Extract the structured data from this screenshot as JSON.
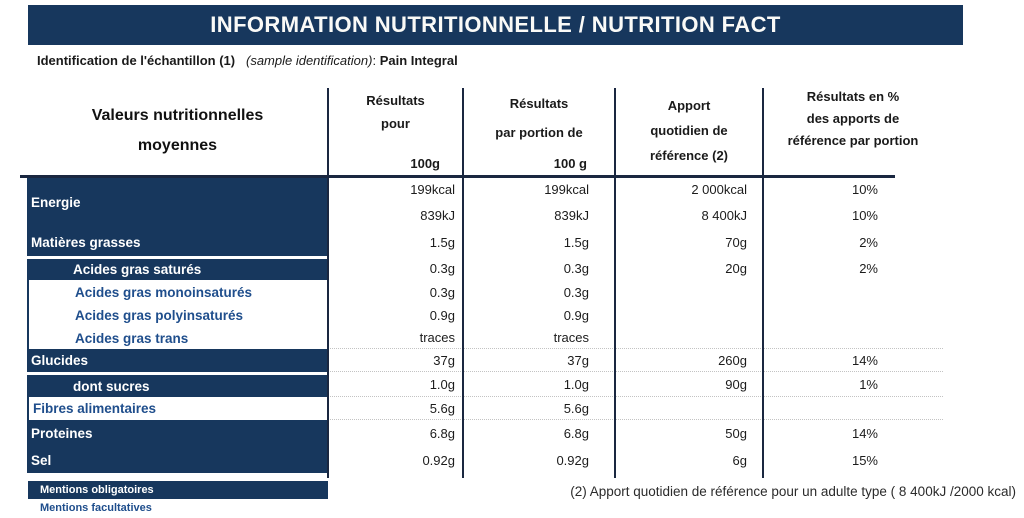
{
  "title": "INFORMATION NUTRITIONNELLE / NUTRITION FACT",
  "identification": {
    "label_fr": "Identification de l'échantillon (1)",
    "label_en": "(sample identification)",
    "separator": ":",
    "value": "Pain Integral"
  },
  "table": {
    "row_header": {
      "lines": [
        "Valeurs nutritionnelles",
        "moyennes"
      ]
    },
    "columns": [
      {
        "lines": [
          "Résultats",
          "pour"
        ],
        "unit": "100g"
      },
      {
        "lines": [
          "Résultats",
          "par portion de"
        ],
        "unit": "100 g"
      },
      {
        "lines": [
          "Apport",
          "quotidien de",
          "référence (2)"
        ],
        "unit": ""
      },
      {
        "lines": [
          "Résultats en %",
          "des apports de",
          "référence par portion"
        ],
        "unit": ""
      }
    ],
    "rows": [
      {
        "label": "Energie",
        "mandatory": true,
        "indent": false,
        "values": [
          [
            "199kcal",
            "839kJ"
          ],
          [
            "199kcal",
            "839kJ"
          ],
          [
            "2 000kcal",
            "8 400kJ"
          ],
          [
            "10%",
            "10%"
          ]
        ]
      },
      {
        "label": "Matières grasses",
        "mandatory": true,
        "indent": false,
        "values": [
          "1.5g",
          "1.5g",
          "70g",
          "2%"
        ]
      },
      {
        "label": "Acides gras saturés",
        "mandatory": true,
        "indent": true,
        "values": [
          "0.3g",
          "0.3g",
          "20g",
          "2%"
        ]
      },
      {
        "label": "Acides gras monoinsaturés",
        "mandatory": false,
        "indent": true,
        "values": [
          "0.3g",
          "0.3g",
          "",
          ""
        ]
      },
      {
        "label": "Acides gras polyinsaturés",
        "mandatory": false,
        "indent": true,
        "values": [
          "0.9g",
          "0.9g",
          "",
          ""
        ]
      },
      {
        "label": "Acides gras trans",
        "mandatory": false,
        "indent": true,
        "values": [
          "traces",
          "traces",
          "",
          ""
        ]
      },
      {
        "label": "Glucides",
        "mandatory": true,
        "indent": false,
        "values": [
          "37g",
          "37g",
          "260g",
          "14%"
        ]
      },
      {
        "label": "dont sucres",
        "mandatory": true,
        "indent": true,
        "values": [
          "1.0g",
          "1.0g",
          "90g",
          "1%"
        ]
      },
      {
        "label": "Fibres alimentaires",
        "mandatory": false,
        "indent": false,
        "values": [
          "5.6g",
          "5.6g",
          "",
          ""
        ]
      },
      {
        "label": "Proteines",
        "mandatory": true,
        "indent": false,
        "values": [
          "6.8g",
          "6.8g",
          "50g",
          "14%"
        ]
      },
      {
        "label": "Sel",
        "mandatory": true,
        "indent": false,
        "values": [
          "0.92g",
          "0.92g",
          "6g",
          "15%"
        ]
      }
    ]
  },
  "legend": {
    "mandatory": "Mentions obligatoires",
    "optional": "Mentions facultatives"
  },
  "footnote": "(2) Apport quotidien de référence pour un adulte type ( 8 400kJ /2000 kcal)",
  "colors": {
    "navy": "#17375D",
    "label_blue": "#1F4E8C",
    "grid_line": "#1A2740"
  }
}
